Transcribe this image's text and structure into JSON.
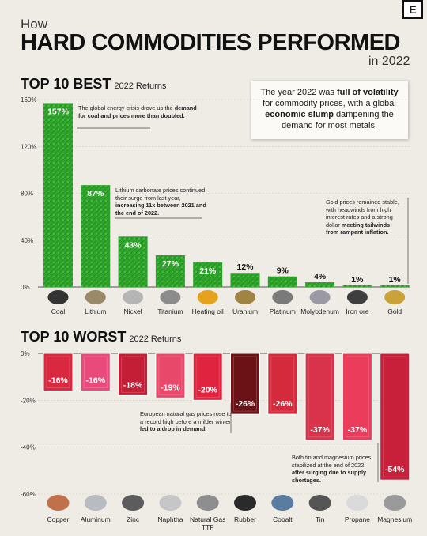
{
  "header": {
    "how": "How",
    "title": "HARD COMMODITIES PERFORMED",
    "year": "in 2022",
    "logo": "E"
  },
  "callout": {
    "parts": [
      "The year 2022 was ",
      "full of volatility",
      " for commodity prices, with a global ",
      "economic slump",
      " dampening the demand for most metals."
    ]
  },
  "best": {
    "title": "TOP 10 BEST",
    "subtitle": "2022 Returns"
  },
  "worst": {
    "title": "TOP 10 WORST",
    "subtitle": "2022 Returns"
  },
  "notes": {
    "coal": {
      "a": "The global energy crisis drove up the ",
      "b": "demand for coal and prices more than doubled."
    },
    "lithium": {
      "a": "Lithium carbonate prices continued their surge from last year, ",
      "b": "increasing 11x between 2021 and the end of 2022."
    },
    "gold": {
      "a": "Gold prices remained stable, with headwinds from high interest rates and a strong dollar ",
      "b": "meeting tailwinds from rampant inflation."
    },
    "gas": {
      "a": "European natural gas prices rose to a record high before a milder winter ",
      "b": "led to a drop in demand."
    },
    "tin": {
      "a": "Both tin and magnesium prices stabilized at the end of 2022, ",
      "b": "after surging due to supply shortages."
    }
  },
  "chart_data": [
    {
      "type": "bar",
      "title": "TOP 10 BEST",
      "subtitle": "2022 Returns",
      "categories": [
        "Coal",
        "Lithium",
        "Nickel",
        "Titanium",
        "Heating oil",
        "Uranium",
        "Platinum",
        "Molybdenum",
        "Iron ore",
        "Gold"
      ],
      "values": [
        157,
        87,
        43,
        27,
        21,
        12,
        9,
        4,
        1,
        1
      ],
      "value_labels": [
        "157%",
        "87%",
        "43%",
        "27%",
        "21%",
        "12%",
        "9%",
        "4%",
        "1%",
        "1%"
      ],
      "ylim": [
        0,
        160
      ],
      "yticks": [
        "0%",
        "40%",
        "80%",
        "120%",
        "160%"
      ],
      "grid": true,
      "color": "#2fa52c"
    },
    {
      "type": "bar",
      "title": "TOP 10 WORST",
      "subtitle": "2022 Returns",
      "categories": [
        "Copper",
        "Aluminum",
        "Zinc",
        "Naphtha",
        "Natural Gas TTF",
        "Rubber",
        "Cobalt",
        "Tin",
        "Propane",
        "Magnesium"
      ],
      "values": [
        -16,
        -16,
        -18,
        -19,
        -20,
        -26,
        -26,
        -37,
        -37,
        -54
      ],
      "value_labels": [
        "-16%",
        "-16%",
        "-18%",
        "-19%",
        "-20%",
        "-26%",
        "-26%",
        "-37%",
        "-37%",
        "-54%"
      ],
      "ylim": [
        -60,
        0
      ],
      "yticks": [
        "0%",
        "-20%",
        "-40%",
        "-60%"
      ],
      "grid": true,
      "colors": [
        "#d9283f",
        "#ea4a7b",
        "#c41d36",
        "#e8486a",
        "#e0233e",
        "#6b1216",
        "#d42a3c",
        "#d8334a",
        "#ec3c5c",
        "#c81f3a"
      ]
    }
  ]
}
